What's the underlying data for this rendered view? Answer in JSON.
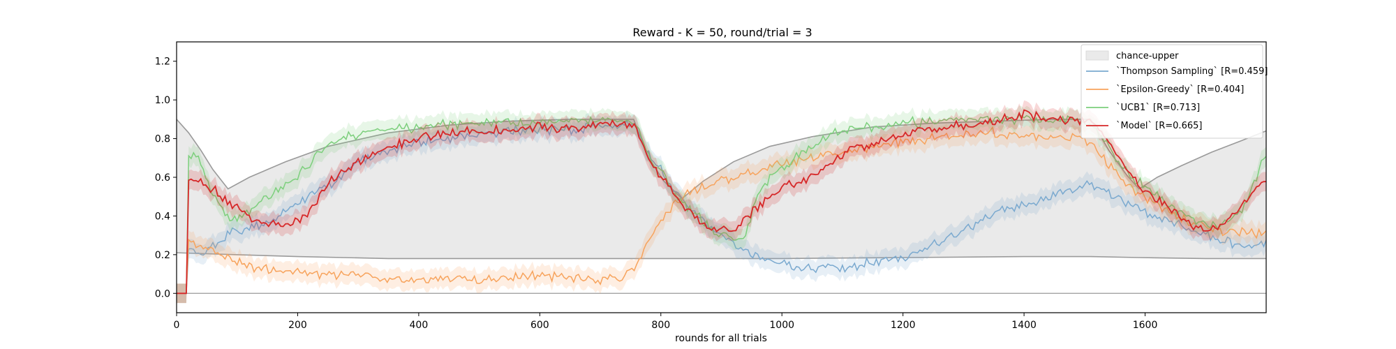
{
  "chart_data": {
    "type": "line",
    "title": "Reward - K = 50, round/trial = 3",
    "xlabel": "rounds for all trials",
    "ylabel": "",
    "xlim": [
      0,
      1800
    ],
    "ylim": [
      -0.1,
      1.3
    ],
    "xticks": [
      "0",
      "200",
      "400",
      "600",
      "800",
      "1000",
      "1200",
      "1400",
      "1600"
    ],
    "xtick_values": [
      0,
      200,
      400,
      600,
      800,
      1000,
      1200,
      1400,
      1600
    ],
    "yticks": [
      "0.0",
      "0.2",
      "0.4",
      "0.6",
      "0.8",
      "1.0",
      "1.2"
    ],
    "ytick_values": [
      0.0,
      0.2,
      0.4,
      0.6,
      0.8,
      1.0,
      1.2
    ],
    "grid": false,
    "legend_position": "top-right",
    "chance_band": {
      "name": "chance-upper",
      "color": "#d9d9d9",
      "upper": [
        [
          0,
          0.9
        ],
        [
          20,
          0.83
        ],
        [
          40,
          0.74
        ],
        [
          60,
          0.64
        ],
        [
          85,
          0.54
        ],
        [
          120,
          0.6
        ],
        [
          180,
          0.68
        ],
        [
          250,
          0.76
        ],
        [
          350,
          0.83
        ],
        [
          450,
          0.87
        ],
        [
          550,
          0.89
        ],
        [
          650,
          0.9
        ],
        [
          755,
          0.9
        ],
        [
          780,
          0.7
        ],
        [
          805,
          0.58
        ],
        [
          835,
          0.49
        ],
        [
          870,
          0.58
        ],
        [
          920,
          0.68
        ],
        [
          980,
          0.76
        ],
        [
          1050,
          0.81
        ],
        [
          1150,
          0.86
        ],
        [
          1250,
          0.88
        ],
        [
          1350,
          0.89
        ],
        [
          1450,
          0.9
        ],
        [
          1510,
          0.9
        ],
        [
          1540,
          0.74
        ],
        [
          1570,
          0.61
        ],
        [
          1590,
          0.54
        ],
        [
          1620,
          0.6
        ],
        [
          1660,
          0.66
        ],
        [
          1710,
          0.73
        ],
        [
          1760,
          0.79
        ],
        [
          1800,
          0.84
        ]
      ],
      "lower": [
        [
          0,
          0.21
        ],
        [
          100,
          0.2
        ],
        [
          200,
          0.19
        ],
        [
          350,
          0.18
        ],
        [
          600,
          0.18
        ],
        [
          755,
          0.18
        ],
        [
          835,
          0.18
        ],
        [
          1000,
          0.18
        ],
        [
          1200,
          0.185
        ],
        [
          1400,
          0.19
        ],
        [
          1510,
          0.19
        ],
        [
          1590,
          0.185
        ],
        [
          1700,
          0.18
        ],
        [
          1800,
          0.18
        ]
      ]
    },
    "zero_line": 0.0,
    "series": [
      {
        "name": "`Thompson Sampling` [R=0.459]",
        "color": "#7aa9cf",
        "points": [
          [
            0,
            0.0
          ],
          [
            17,
            0.0
          ],
          [
            18,
            0.22
          ],
          [
            40,
            0.2
          ],
          [
            60,
            0.25
          ],
          [
            90,
            0.32
          ],
          [
            120,
            0.34
          ],
          [
            150,
            0.37
          ],
          [
            180,
            0.42
          ],
          [
            220,
            0.5
          ],
          [
            260,
            0.58
          ],
          [
            300,
            0.68
          ],
          [
            350,
            0.74
          ],
          [
            400,
            0.78
          ],
          [
            450,
            0.8
          ],
          [
            500,
            0.83
          ],
          [
            550,
            0.84
          ],
          [
            600,
            0.85
          ],
          [
            650,
            0.85
          ],
          [
            700,
            0.86
          ],
          [
            755,
            0.88
          ],
          [
            780,
            0.72
          ],
          [
            805,
            0.62
          ],
          [
            830,
            0.5
          ],
          [
            860,
            0.4
          ],
          [
            890,
            0.32
          ],
          [
            920,
            0.26
          ],
          [
            950,
            0.21
          ],
          [
            980,
            0.17
          ],
          [
            1010,
            0.15
          ],
          [
            1050,
            0.13
          ],
          [
            1080,
            0.14
          ],
          [
            1100,
            0.12
          ],
          [
            1130,
            0.15
          ],
          [
            1160,
            0.17
          ],
          [
            1200,
            0.18
          ],
          [
            1240,
            0.24
          ],
          [
            1280,
            0.3
          ],
          [
            1320,
            0.36
          ],
          [
            1360,
            0.42
          ],
          [
            1400,
            0.46
          ],
          [
            1450,
            0.5
          ],
          [
            1490,
            0.55
          ],
          [
            1510,
            0.57
          ],
          [
            1540,
            0.52
          ],
          [
            1570,
            0.46
          ],
          [
            1600,
            0.42
          ],
          [
            1640,
            0.38
          ],
          [
            1680,
            0.32
          ],
          [
            1720,
            0.28
          ],
          [
            1760,
            0.25
          ],
          [
            1800,
            0.25
          ]
        ]
      },
      {
        "name": "`Epsilon-Greedy` [R=0.404]",
        "color": "#f7a35c",
        "points": [
          [
            0,
            0.0
          ],
          [
            17,
            0.0
          ],
          [
            18,
            0.27
          ],
          [
            40,
            0.24
          ],
          [
            60,
            0.21
          ],
          [
            90,
            0.18
          ],
          [
            120,
            0.14
          ],
          [
            160,
            0.12
          ],
          [
            200,
            0.11
          ],
          [
            250,
            0.1
          ],
          [
            300,
            0.09
          ],
          [
            350,
            0.08
          ],
          [
            400,
            0.07
          ],
          [
            450,
            0.08
          ],
          [
            500,
            0.07
          ],
          [
            550,
            0.08
          ],
          [
            600,
            0.09
          ],
          [
            650,
            0.08
          ],
          [
            700,
            0.07
          ],
          [
            740,
            0.09
          ],
          [
            755,
            0.12
          ],
          [
            780,
            0.28
          ],
          [
            805,
            0.4
          ],
          [
            830,
            0.48
          ],
          [
            860,
            0.54
          ],
          [
            900,
            0.58
          ],
          [
            950,
            0.62
          ],
          [
            1000,
            0.67
          ],
          [
            1050,
            0.7
          ],
          [
            1100,
            0.73
          ],
          [
            1150,
            0.76
          ],
          [
            1200,
            0.78
          ],
          [
            1250,
            0.8
          ],
          [
            1300,
            0.82
          ],
          [
            1350,
            0.83
          ],
          [
            1400,
            0.82
          ],
          [
            1450,
            0.81
          ],
          [
            1490,
            0.8
          ],
          [
            1510,
            0.78
          ],
          [
            1540,
            0.66
          ],
          [
            1570,
            0.56
          ],
          [
            1600,
            0.5
          ],
          [
            1640,
            0.42
          ],
          [
            1680,
            0.36
          ],
          [
            1720,
            0.33
          ],
          [
            1760,
            0.31
          ],
          [
            1800,
            0.31
          ]
        ]
      },
      {
        "name": "`UCB1` [R=0.713]",
        "color": "#7ccf7c",
        "points": [
          [
            0,
            0.0
          ],
          [
            17,
            0.0
          ],
          [
            18,
            0.73
          ],
          [
            40,
            0.68
          ],
          [
            60,
            0.5
          ],
          [
            90,
            0.38
          ],
          [
            120,
            0.42
          ],
          [
            150,
            0.5
          ],
          [
            180,
            0.56
          ],
          [
            220,
            0.66
          ],
          [
            250,
            0.78
          ],
          [
            300,
            0.82
          ],
          [
            350,
            0.85
          ],
          [
            400,
            0.86
          ],
          [
            450,
            0.87
          ],
          [
            500,
            0.89
          ],
          [
            550,
            0.88
          ],
          [
            600,
            0.89
          ],
          [
            650,
            0.89
          ],
          [
            700,
            0.9
          ],
          [
            755,
            0.9
          ],
          [
            780,
            0.7
          ],
          [
            805,
            0.6
          ],
          [
            830,
            0.48
          ],
          [
            860,
            0.4
          ],
          [
            890,
            0.32
          ],
          [
            920,
            0.28
          ],
          [
            940,
            0.3
          ],
          [
            960,
            0.52
          ],
          [
            990,
            0.62
          ],
          [
            1030,
            0.72
          ],
          [
            1070,
            0.8
          ],
          [
            1100,
            0.84
          ],
          [
            1150,
            0.86
          ],
          [
            1200,
            0.88
          ],
          [
            1250,
            0.89
          ],
          [
            1300,
            0.9
          ],
          [
            1350,
            0.9
          ],
          [
            1400,
            0.9
          ],
          [
            1450,
            0.89
          ],
          [
            1490,
            0.9
          ],
          [
            1510,
            0.88
          ],
          [
            1540,
            0.76
          ],
          [
            1570,
            0.62
          ],
          [
            1600,
            0.55
          ],
          [
            1640,
            0.45
          ],
          [
            1680,
            0.38
          ],
          [
            1720,
            0.34
          ],
          [
            1760,
            0.42
          ],
          [
            1800,
            0.72
          ]
        ]
      },
      {
        "name": "`Model` [R=0.665]",
        "color": "#d62728",
        "points": [
          [
            0,
            0.0
          ],
          [
            17,
            0.0
          ],
          [
            18,
            0.57
          ],
          [
            40,
            0.58
          ],
          [
            60,
            0.54
          ],
          [
            90,
            0.46
          ],
          [
            120,
            0.4
          ],
          [
            150,
            0.36
          ],
          [
            180,
            0.34
          ],
          [
            220,
            0.42
          ],
          [
            260,
            0.6
          ],
          [
            300,
            0.68
          ],
          [
            350,
            0.76
          ],
          [
            400,
            0.8
          ],
          [
            450,
            0.83
          ],
          [
            500,
            0.84
          ],
          [
            550,
            0.84
          ],
          [
            600,
            0.86
          ],
          [
            650,
            0.85
          ],
          [
            700,
            0.87
          ],
          [
            755,
            0.88
          ],
          [
            780,
            0.7
          ],
          [
            805,
            0.58
          ],
          [
            830,
            0.48
          ],
          [
            860,
            0.38
          ],
          [
            890,
            0.33
          ],
          [
            920,
            0.33
          ],
          [
            950,
            0.42
          ],
          [
            990,
            0.52
          ],
          [
            1030,
            0.58
          ],
          [
            1070,
            0.65
          ],
          [
            1100,
            0.72
          ],
          [
            1150,
            0.78
          ],
          [
            1200,
            0.82
          ],
          [
            1250,
            0.85
          ],
          [
            1300,
            0.87
          ],
          [
            1350,
            0.88
          ],
          [
            1400,
            0.93
          ],
          [
            1450,
            0.9
          ],
          [
            1490,
            0.89
          ],
          [
            1510,
            0.9
          ],
          [
            1540,
            0.78
          ],
          [
            1570,
            0.64
          ],
          [
            1600,
            0.52
          ],
          [
            1640,
            0.44
          ],
          [
            1680,
            0.34
          ],
          [
            1720,
            0.33
          ],
          [
            1760,
            0.45
          ],
          [
            1800,
            0.6
          ]
        ]
      }
    ]
  },
  "legend": {
    "band_label": "chance-upper",
    "items": [
      {
        "label": "`Thompson Sampling` [R=0.459]",
        "color": "#7aa9cf"
      },
      {
        "label": "`Epsilon-Greedy` [R=0.404]",
        "color": "#f7a35c"
      },
      {
        "label": "`UCB1` [R=0.713]",
        "color": "#7ccf7c"
      },
      {
        "label": "`Model` [R=0.665]",
        "color": "#d62728"
      }
    ]
  }
}
